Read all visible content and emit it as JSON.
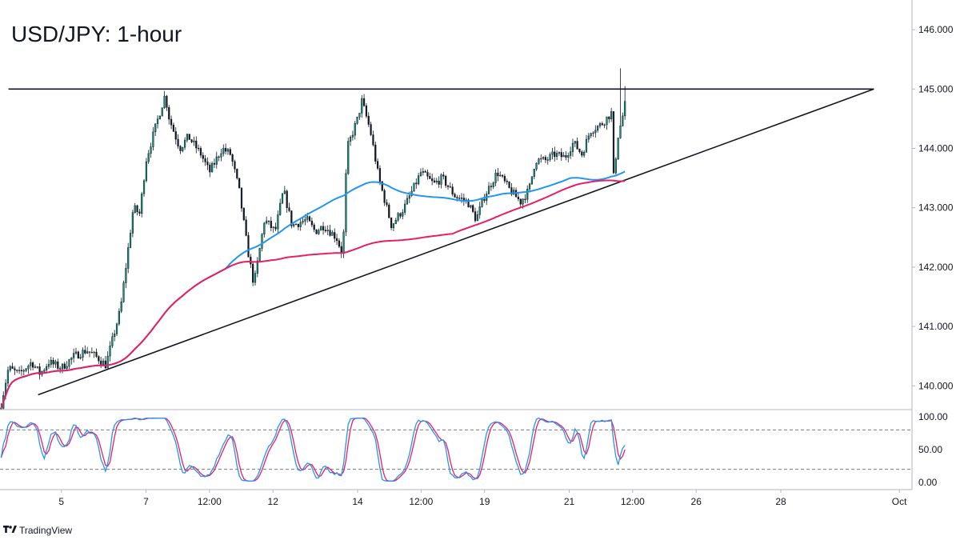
{
  "chart_data": {
    "type": "candlestick",
    "title": "USD/JPY: 1-hour",
    "price_axis": {
      "ticks": [
        140.0,
        141.0,
        142.0,
        143.0,
        144.0,
        145.0,
        146.0
      ],
      "tick_labels": [
        "140.000",
        "141.000",
        "142.000",
        "143.000",
        "144.000",
        "145.000",
        "146.000"
      ],
      "range": [
        139.6,
        146.5
      ]
    },
    "time_axis": {
      "ticks": [
        {
          "label": "5",
          "day": 5
        },
        {
          "label": "7",
          "day": 7
        },
        {
          "label": "12:00",
          "day": 8.5
        },
        {
          "label": "12",
          "day": 10
        },
        {
          "label": "14",
          "day": 12
        },
        {
          "label": "12:00",
          "day": 13.5
        },
        {
          "label": "19",
          "day": 15
        },
        {
          "label": "21",
          "day": 17
        },
        {
          "label": "12:00",
          "day": 18.5
        },
        {
          "label": "26",
          "day": 20
        },
        {
          "label": "28",
          "day": 22
        },
        {
          "label": "Oct",
          "day": 24.8
        }
      ],
      "range": [
        3.55,
        25.1
      ],
      "price_end_day": 18.35
    },
    "price_anchors": [
      [
        3.55,
        139.6
      ],
      [
        3.75,
        140.3
      ],
      [
        4.0,
        140.2
      ],
      [
        4.3,
        140.4
      ],
      [
        4.5,
        140.2
      ],
      [
        4.7,
        140.4
      ],
      [
        5.0,
        140.3
      ],
      [
        5.3,
        140.5
      ],
      [
        5.6,
        140.6
      ],
      [
        5.9,
        140.45
      ],
      [
        6.05,
        140.35
      ],
      [
        6.4,
        141.3
      ],
      [
        6.7,
        143.0
      ],
      [
        6.85,
        142.9
      ],
      [
        7.0,
        143.8
      ],
      [
        7.2,
        144.3
      ],
      [
        7.45,
        144.9
      ],
      [
        7.55,
        144.5
      ],
      [
        7.8,
        144.0
      ],
      [
        8.0,
        144.2
      ],
      [
        8.3,
        143.9
      ],
      [
        8.5,
        143.6
      ],
      [
        8.8,
        144.0
      ],
      [
        9.0,
        143.9
      ],
      [
        9.2,
        143.3
      ],
      [
        9.4,
        142.3
      ],
      [
        9.55,
        141.7
      ],
      [
        9.8,
        142.8
      ],
      [
        10.05,
        142.6
      ],
      [
        10.25,
        143.3
      ],
      [
        10.45,
        142.7
      ],
      [
        10.8,
        142.8
      ],
      [
        11.0,
        142.6
      ],
      [
        11.2,
        142.7
      ],
      [
        11.5,
        142.5
      ],
      [
        11.65,
        142.2
      ],
      [
        11.75,
        144.0
      ],
      [
        12.0,
        144.5
      ],
      [
        12.1,
        144.8
      ],
      [
        12.3,
        144.3
      ],
      [
        12.5,
        143.5
      ],
      [
        12.8,
        142.7
      ],
      [
        13.1,
        143.0
      ],
      [
        13.3,
        143.3
      ],
      [
        13.5,
        143.6
      ],
      [
        13.8,
        143.4
      ],
      [
        14.0,
        143.5
      ],
      [
        14.3,
        143.2
      ],
      [
        14.6,
        143.1
      ],
      [
        14.8,
        142.8
      ],
      [
        15.0,
        143.2
      ],
      [
        15.3,
        143.6
      ],
      [
        15.6,
        143.3
      ],
      [
        15.85,
        143.1
      ],
      [
        16.05,
        143.3
      ],
      [
        16.2,
        143.8
      ],
      [
        16.45,
        143.8
      ],
      [
        16.65,
        143.9
      ],
      [
        16.9,
        143.85
      ],
      [
        17.1,
        144.1
      ],
      [
        17.3,
        143.9
      ],
      [
        17.5,
        144.3
      ],
      [
        17.75,
        144.4
      ],
      [
        18.0,
        144.6
      ],
      [
        18.05,
        143.5
      ],
      [
        18.15,
        144.2
      ],
      [
        18.25,
        144.5
      ],
      [
        18.35,
        144.85
      ]
    ],
    "support_line": {
      "start": [
        4.45,
        139.85
      ],
      "end": [
        24.2,
        145.0
      ]
    },
    "resistance_line": {
      "start": [
        3.75,
        145.0
      ],
      "end": [
        24.2,
        145.0
      ]
    },
    "ma_fast_color": "#2196f3",
    "ma_slow_color": "#e91e63",
    "candle_up_color": "#089981",
    "candle_down_color": "#131722",
    "oscillator": {
      "type": "stochastic",
      "ticks": [
        0,
        50,
        100
      ],
      "tick_labels": [
        "0.00",
        "50.00",
        "100.00"
      ],
      "dashed_levels": [
        20,
        80
      ],
      "k_color": "#2196f3",
      "d_color": "#e91e63"
    }
  },
  "brand": {
    "logo_icon": "tradingview-logo-icon",
    "name": "TradingView"
  }
}
